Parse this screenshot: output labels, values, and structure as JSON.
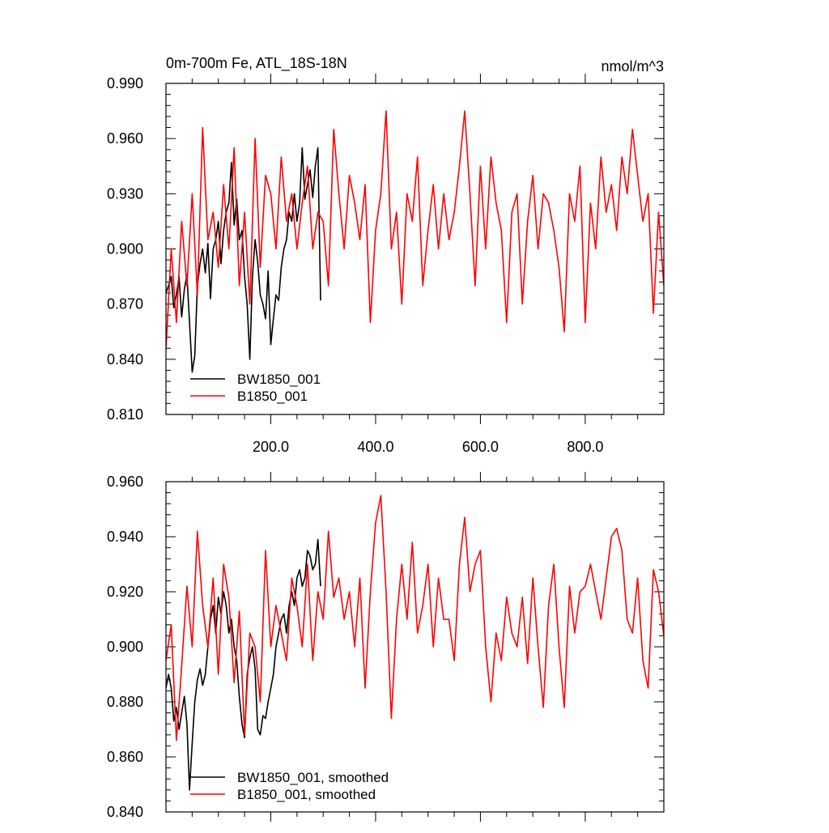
{
  "chart_data": [
    {
      "type": "line",
      "title": "0m-700m Fe, ATL_18S-18N",
      "units": "nmol/m^3",
      "xlim": [
        0,
        950
      ],
      "ylim": [
        0.81,
        0.99
      ],
      "xticks": [
        200,
        400,
        600,
        800
      ],
      "xtick_labels": [
        "200.0",
        "400.0",
        "600.0",
        "800.0"
      ],
      "yticks": [
        0.81,
        0.84,
        0.87,
        0.9,
        0.93,
        0.96,
        0.99
      ],
      "ytick_labels": [
        "0.810",
        "0.840",
        "0.870",
        "0.900",
        "0.930",
        "0.960",
        "0.990"
      ],
      "legend_position": "bottom-left",
      "series": [
        {
          "name": "BW1850_001",
          "color": "#000000",
          "x": [
            0,
            5,
            10,
            15,
            20,
            25,
            30,
            35,
            40,
            45,
            50,
            55,
            60,
            65,
            70,
            75,
            80,
            85,
            90,
            95,
            100,
            105,
            110,
            115,
            120,
            125,
            130,
            135,
            140,
            145,
            150,
            155,
            160,
            165,
            170,
            175,
            180,
            185,
            190,
            195,
            200,
            205,
            210,
            215,
            220,
            225,
            230,
            235,
            240,
            245,
            250,
            255,
            260,
            265,
            270,
            275,
            280,
            285,
            290,
            295
          ],
          "values": [
            0.876,
            0.88,
            0.885,
            0.868,
            0.875,
            0.885,
            0.863,
            0.878,
            0.886,
            0.86,
            0.833,
            0.842,
            0.88,
            0.892,
            0.9,
            0.887,
            0.903,
            0.873,
            0.9,
            0.905,
            0.915,
            0.892,
            0.91,
            0.92,
            0.925,
            0.947,
            0.913,
            0.927,
            0.905,
            0.91,
            0.885,
            0.87,
            0.84,
            0.885,
            0.905,
            0.893,
            0.875,
            0.87,
            0.862,
            0.888,
            0.848,
            0.862,
            0.875,
            0.872,
            0.89,
            0.9,
            0.905,
            0.92,
            0.915,
            0.93,
            0.915,
            0.925,
            0.955,
            0.927,
            0.935,
            0.943,
            0.928,
            0.945,
            0.955,
            0.872
          ]
        },
        {
          "name": "B1850_001",
          "color": "#ff0000",
          "x": [
            0,
            10,
            20,
            30,
            40,
            50,
            60,
            70,
            80,
            90,
            100,
            110,
            120,
            130,
            140,
            150,
            160,
            170,
            180,
            190,
            200,
            210,
            220,
            230,
            240,
            250,
            260,
            270,
            280,
            290,
            300,
            310,
            320,
            330,
            340,
            350,
            360,
            370,
            380,
            390,
            400,
            410,
            420,
            430,
            440,
            450,
            460,
            470,
            480,
            490,
            500,
            510,
            520,
            530,
            540,
            550,
            560,
            570,
            580,
            590,
            600,
            610,
            620,
            630,
            640,
            650,
            660,
            670,
            680,
            690,
            700,
            710,
            720,
            730,
            740,
            750,
            760,
            770,
            780,
            790,
            800,
            810,
            820,
            830,
            840,
            850,
            860,
            870,
            880,
            890,
            900,
            910,
            920,
            930,
            940,
            950
          ],
          "values": [
            0.845,
            0.9,
            0.86,
            0.915,
            0.88,
            0.93,
            0.875,
            0.966,
            0.905,
            0.92,
            0.89,
            0.935,
            0.9,
            0.955,
            0.88,
            0.92,
            0.87,
            0.96,
            0.89,
            0.94,
            0.93,
            0.9,
            0.95,
            0.915,
            0.93,
            0.9,
            0.925,
            0.945,
            0.9,
            0.92,
            0.915,
            0.88,
            0.965,
            0.93,
            0.9,
            0.94,
            0.925,
            0.905,
            0.935,
            0.86,
            0.91,
            0.93,
            0.975,
            0.9,
            0.92,
            0.87,
            0.93,
            0.915,
            0.95,
            0.88,
            0.91,
            0.935,
            0.9,
            0.93,
            0.905,
            0.92,
            0.945,
            0.975,
            0.93,
            0.88,
            0.945,
            0.9,
            0.95,
            0.925,
            0.91,
            0.86,
            0.92,
            0.93,
            0.87,
            0.915,
            0.94,
            0.9,
            0.93,
            0.925,
            0.91,
            0.89,
            0.855,
            0.93,
            0.915,
            0.945,
            0.86,
            0.925,
            0.9,
            0.95,
            0.92,
            0.935,
            0.91,
            0.95,
            0.93,
            0.965,
            0.94,
            0.915,
            0.93,
            0.865,
            0.92,
            0.88
          ]
        }
      ]
    },
    {
      "type": "line",
      "xlim": [
        0,
        950
      ],
      "ylim": [
        0.84,
        0.96
      ],
      "yticks": [
        0.84,
        0.86,
        0.88,
        0.9,
        0.92,
        0.94,
        0.96
      ],
      "ytick_labels": [
        "0.840",
        "0.860",
        "0.880",
        "0.900",
        "0.920",
        "0.940",
        "0.960"
      ],
      "legend_position": "bottom-left",
      "series": [
        {
          "name": "BW1850_001, smoothed",
          "color": "#000000",
          "x": [
            0,
            5,
            10,
            15,
            20,
            25,
            30,
            35,
            40,
            45,
            50,
            55,
            60,
            65,
            70,
            75,
            80,
            85,
            90,
            95,
            100,
            105,
            110,
            115,
            120,
            125,
            130,
            135,
            140,
            145,
            150,
            155,
            160,
            165,
            170,
            175,
            180,
            185,
            190,
            195,
            200,
            205,
            210,
            215,
            220,
            225,
            230,
            235,
            240,
            245,
            250,
            255,
            260,
            265,
            270,
            275,
            280,
            285,
            290,
            295
          ],
          "values": [
            0.885,
            0.89,
            0.885,
            0.873,
            0.878,
            0.87,
            0.876,
            0.882,
            0.872,
            0.848,
            0.865,
            0.88,
            0.888,
            0.892,
            0.886,
            0.89,
            0.9,
            0.91,
            0.915,
            0.905,
            0.918,
            0.912,
            0.92,
            0.915,
            0.905,
            0.91,
            0.9,
            0.895,
            0.882,
            0.872,
            0.867,
            0.89,
            0.896,
            0.9,
            0.892,
            0.87,
            0.868,
            0.875,
            0.874,
            0.88,
            0.885,
            0.89,
            0.9,
            0.905,
            0.91,
            0.912,
            0.905,
            0.915,
            0.92,
            0.915,
            0.925,
            0.928,
            0.922,
            0.925,
            0.935,
            0.933,
            0.928,
            0.93,
            0.939,
            0.922
          ]
        },
        {
          "name": "B1850_001, smoothed",
          "color": "#ff0000",
          "x": [
            0,
            10,
            20,
            30,
            40,
            50,
            60,
            70,
            80,
            90,
            100,
            110,
            120,
            130,
            140,
            150,
            160,
            170,
            180,
            190,
            200,
            210,
            220,
            230,
            240,
            250,
            260,
            270,
            280,
            290,
            300,
            310,
            320,
            330,
            340,
            350,
            360,
            370,
            380,
            390,
            400,
            410,
            420,
            430,
            440,
            450,
            460,
            470,
            480,
            490,
            500,
            510,
            520,
            530,
            540,
            550,
            560,
            570,
            580,
            590,
            600,
            610,
            620,
            630,
            640,
            650,
            660,
            670,
            680,
            690,
            700,
            710,
            720,
            730,
            740,
            750,
            760,
            770,
            780,
            790,
            800,
            810,
            820,
            830,
            840,
            850,
            860,
            870,
            880,
            890,
            900,
            910,
            920,
            930,
            940,
            950
          ],
          "values": [
            0.895,
            0.908,
            0.866,
            0.893,
            0.922,
            0.9,
            0.942,
            0.915,
            0.9,
            0.925,
            0.89,
            0.93,
            0.918,
            0.887,
            0.913,
            0.868,
            0.905,
            0.9,
            0.88,
            0.935,
            0.9,
            0.915,
            0.905,
            0.895,
            0.925,
            0.915,
            0.9,
            0.93,
            0.895,
            0.92,
            0.91,
            0.942,
            0.918,
            0.925,
            0.91,
            0.92,
            0.9,
            0.925,
            0.885,
            0.92,
            0.945,
            0.955,
            0.92,
            0.874,
            0.91,
            0.93,
            0.91,
            0.938,
            0.905,
            0.915,
            0.93,
            0.9,
            0.925,
            0.91,
            0.91,
            0.895,
            0.93,
            0.947,
            0.92,
            0.93,
            0.935,
            0.9,
            0.88,
            0.905,
            0.895,
            0.918,
            0.905,
            0.9,
            0.918,
            0.894,
            0.925,
            0.9,
            0.878,
            0.915,
            0.93,
            0.9,
            0.878,
            0.922,
            0.905,
            0.92,
            0.922,
            0.93,
            0.92,
            0.91,
            0.925,
            0.94,
            0.943,
            0.935,
            0.91,
            0.905,
            0.925,
            0.895,
            0.885,
            0.928,
            0.92,
            0.904
          ]
        }
      ]
    }
  ]
}
